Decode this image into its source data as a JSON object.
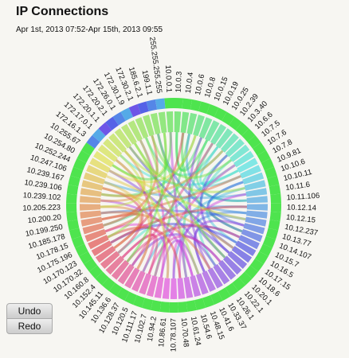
{
  "header": {
    "title": "IP Connections",
    "subtitle": "Apr 1st, 2013 07:52-Apr 15th, 2013 09:55"
  },
  "diagram": {
    "nodes": [
      "10.0.3",
      "10.0.4",
      "10.0.6",
      "10.0.8",
      "10.0.15",
      "10.0.19",
      "10.0.25",
      "10.2.39",
      "10.3.40",
      "10.6.6",
      "10.7.5",
      "10.7.6",
      "10.7.8",
      "10.9.81",
      "10.10.6",
      "10.10.11",
      "10.11.6",
      "10.11.106",
      "10.12.14",
      "10.12.15",
      "10.12.237",
      "10.13.77",
      "10.14.107",
      "10.15.7",
      "10.16.5",
      "10.17.15",
      "10.18.6",
      "10.20.1",
      "10.22.1",
      "10.26.1",
      "10.33.37",
      "10.41.6",
      "10.48.15",
      "10.54.6",
      "10.61.24",
      "10.70.48",
      "10.78.107",
      "10.86.61",
      "10.94.2",
      "10.102.7",
      "10.111.17",
      "10.120.5",
      "10.128.37",
      "10.136.6",
      "10.145.11",
      "10.152.4",
      "10.160.8",
      "10.170.32",
      "10.170.123",
      "10.175.196",
      "10.178.15",
      "10.185.178",
      "10.199.250",
      "10.200.20",
      "10.205.223",
      "10.239.102",
      "10.239.106",
      "10.239.167",
      "10.247.106",
      "10.252.244",
      "10.254.80",
      "10.255.67",
      "172.16.1.3",
      "172.17.0.1",
      "172.20.1.1",
      "172.20.2.1",
      "172.26.0.1",
      "172.30.1.9",
      "172.30.2.1",
      "185.6.2.1",
      "199.1.1",
      "255.255.255.255",
      "10.0.0.1"
    ]
  },
  "buttons": [
    "Undo",
    "Redo"
  ]
}
